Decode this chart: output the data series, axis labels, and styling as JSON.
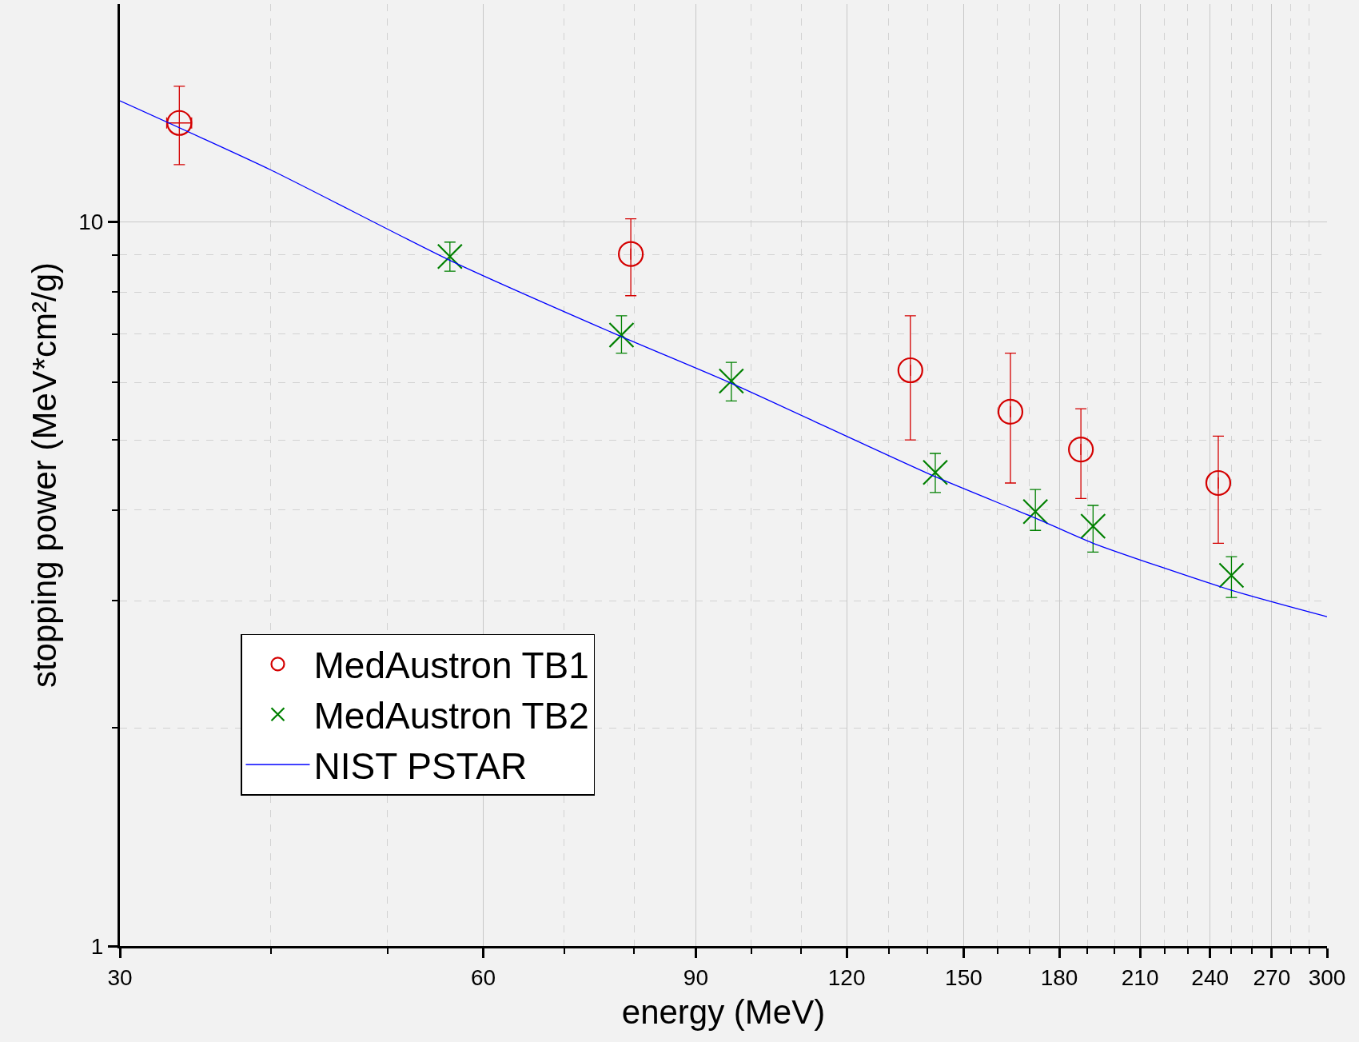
{
  "chart_data": {
    "type": "scatter",
    "xlabel": "energy (MeV)",
    "ylabel": "stopping power (MeV*cm²/g)",
    "log": "xy",
    "grid": true,
    "legend": "bottom left",
    "xlim": [
      30,
      300
    ],
    "ylim": [
      1,
      20
    ],
    "xticks": [
      30,
      {
        "value": 40,
        "label": null
      },
      {
        "value": 50,
        "label": null
      },
      60,
      {
        "value": 70,
        "label": null
      },
      {
        "value": 80,
        "label": null
      },
      90,
      {
        "value": 100,
        "label": null
      },
      {
        "value": 110,
        "label": null
      },
      120,
      {
        "value": 130,
        "label": null
      },
      {
        "value": 140,
        "label": null
      },
      150,
      {
        "value": 160,
        "label": null
      },
      {
        "value": 170,
        "label": null
      },
      180,
      {
        "value": 190,
        "label": null
      },
      {
        "value": 200,
        "label": null
      },
      210,
      {
        "value": 220,
        "label": null
      },
      {
        "value": 230,
        "label": null
      },
      240,
      {
        "value": 250,
        "label": null
      },
      {
        "value": 260,
        "label": null
      },
      270,
      {
        "value": 280,
        "label": null
      },
      {
        "value": 290,
        "label": null
      },
      300
    ],
    "yticks": [
      1,
      {
        "value": 2,
        "label": null
      },
      {
        "value": 3,
        "label": null
      },
      {
        "value": 4,
        "label": null
      },
      {
        "value": 5,
        "label": null
      },
      {
        "value": 6,
        "label": null
      },
      {
        "value": 7,
        "label": null
      },
      {
        "value": 8,
        "label": null
      },
      {
        "value": 9,
        "label": null
      },
      10
    ],
    "series": [
      {
        "name": "MedAustron TB1",
        "color": "#d40000",
        "marker": "circle",
        "x": [
          33.6,
          79.5,
          135.5,
          164,
          187.6,
          243.8
        ],
        "values": [
          13.7,
          9.03,
          6.24,
          5.47,
          4.85,
          4.36
        ],
        "errors": [
          [
            12.0,
            15.4
          ],
          [
            7.91,
            10.1
          ],
          [
            5.0,
            7.42
          ],
          [
            4.36,
            6.59
          ],
          [
            4.15,
            5.52
          ],
          [
            3.6,
            5.06
          ]
        ],
        "xerrors": [
          [
            32.8,
            34.4
          ],
          null,
          null,
          null,
          null,
          null
        ]
      },
      {
        "name": "MedAustron TB2",
        "color": "#008000",
        "marker": "cross",
        "x": [
          56.3,
          78.1,
          96.3,
          142.1,
          172,
          192,
          250
        ],
        "values": [
          8.96,
          6.98,
          6.03,
          4.51,
          3.98,
          3.8,
          3.25
        ],
        "errors": [
          [
            8.55,
            9.38
          ],
          [
            6.59,
            7.42
          ],
          [
            5.66,
            6.4
          ],
          [
            4.23,
            4.79
          ],
          [
            3.75,
            4.27
          ],
          [
            3.5,
            4.06
          ],
          [
            3.03,
            3.45
          ]
        ]
      },
      {
        "name": "NIST PSTAR",
        "color": "#0000ff",
        "type": "line",
        "line_style": "solid",
        "x": [
          30,
          40,
          56.3,
          78,
          96,
          142,
          172,
          192,
          250,
          300
        ],
        "values": [
          14.7,
          11.8,
          8.85,
          6.95,
          6.0,
          4.45,
          3.9,
          3.6,
          3.1,
          2.85
        ]
      }
    ]
  }
}
